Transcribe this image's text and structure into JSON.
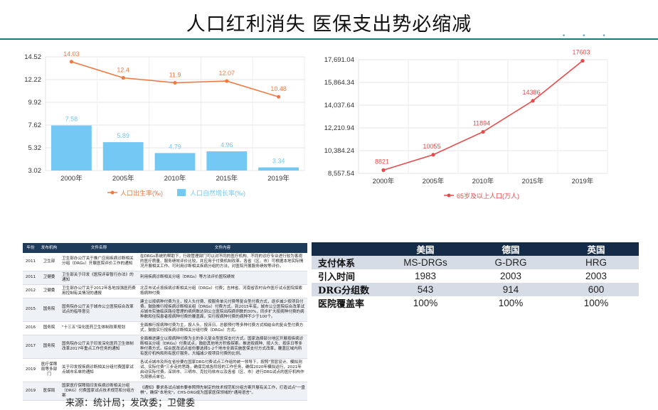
{
  "title": "人口红利消失   医保支出势必缩减",
  "chart_data": [
    {
      "type": "bar",
      "categories": [
        "2000年",
        "2005年",
        "2010年",
        "2015年",
        "2019年"
      ],
      "series": [
        {
          "name": "人口出生率(‰)",
          "type": "line",
          "values": [
            14.03,
            12.4,
            11.9,
            12.07,
            10.48
          ],
          "color": "#f07a45"
        },
        {
          "name": "人口自然增长率(‰)",
          "type": "bar",
          "values": [
            7.58,
            5.89,
            4.79,
            4.96,
            3.34
          ],
          "color": "#74c8f4"
        }
      ],
      "yticks": [
        "14.52",
        "12.22",
        "9.92",
        "7.62",
        "5.32",
        "3.02"
      ],
      "ylim": [
        3.02,
        14.52
      ],
      "grid": true,
      "legend": "bottom"
    },
    {
      "type": "line",
      "categories": [
        "2000年",
        "2005年",
        "2010年",
        "2015年",
        "2019年"
      ],
      "series": [
        {
          "name": "65岁及以上人口(万人)",
          "values": [
            8821,
            10055,
            11894,
            14386,
            17603
          ],
          "color": "#e84a4a"
        }
      ],
      "yticks": [
        "17,691.04",
        "15,864.34",
        "14,037.64",
        "12,210.94",
        "10,384.24",
        "8,557.54"
      ],
      "ylim": [
        8557.54,
        17691.04
      ],
      "grid": true,
      "legend": "bottom"
    }
  ],
  "policy_table": {
    "headers": [
      "年份",
      "发布机构",
      "文件名称",
      "文件内容"
    ],
    "rows": [
      [
        "2011",
        "卫生部",
        "卫生部办公厅关于推广应用疾病诊断相关分组（DRGs）开展医院评价工作的通知",
        "在DRGs系统的帮助下，行政管理部门可以对不同的医疗机构、不同的诊疗专业进行较为客观的医疗质量、服务绩效评价比较，并应用于付费机制改革。各省（区、市）可根据本地实际情况开展相关工作。可利用诊断相关疾病分组的方法，对医院开展服务绩效等评价。"
      ],
      [
        "2011",
        "卫健委",
        "卫生部关于印发《医院评审暂行办法》的通知",
        "利用疾病诊断相关分组（DRGs）等方法评价医院绩效"
      ],
      [
        "2012",
        "卫健委",
        "卫生部办公厅关于2012年各地加强医药费用控制有关情况的通报",
        "北京市试点按疾病诊断相关分组（DRGs）付费；吉林省、河南省农村合作医疗试点医院探索按病种付费"
      ],
      [
        "2015",
        "国务院",
        "国务院办公厅关于城市公立医院综合改革试点的指导意见",
        "建立以按病种付费为主，按人头付费、按服务单元付费等复合型付费方式，逐步减少按项目付费。鼓励推行按疾病诊断相关组（DRGs）付费方式。到2015年底，城市公立医院综合改革试点城市实施临床路径管理的病例数达到公立医院出院病例数的30%，同步扩大按病种付费的病种数和住院患者按病种付费的覆盖面，实行按病种付费的病种不少于100个。"
      ],
      [
        "2016",
        "国务院",
        "\"十三五\"深化医药卫生体制改革规划",
        "全面推行按病种付费为主，按人头、按床日、总额预付等多种付费方式相结合的复合型付费方式，鼓励实行按疾病诊断相关分组付费（DRGs）方式。"
      ],
      [
        "2017",
        "国务院",
        "国务院办公厅关于印发深化医药卫生体制改革2017年重点工作任务的通知",
        "全面推进建立以按病种付费为主的多元复合型医保支付方式。国家选择部分地区开展按疾病诊断相关分组（DRGs）付费试点，鼓励其他地方积极探索。推进按病种、按人头、按床日等多种付费方式。综合医改试点省份要选择1-2个地市全面实施医保支付方式改革，覆盖区域内所有医疗机构和所有医疗服务，大幅减少按项目付费的比例。"
      ],
      [
        "2019",
        "医疗保障局等多部门",
        "关于印发按疾病诊断相关分组付费国家试点城市名单的通知",
        "各试点城市及所在省份要在国家DRG付费试点工作组的统一领导下，按照\"顶层设计、模拟测试、实际付费\"三步走的思路，确保完成各阶段的工作任务，确保2020年模拟运行，2021年启动实际付费。深圳市、三明市、克拉玛依市以及各省（区、市）进行DRG试点的医疗机构作为观察点单位。"
      ],
      [
        "2019",
        "医保局",
        "国家医疗保障局印发疾病诊断相关分组（DRG）付费国家试点技术规范和分组方案",
        "《通知》要求各试点城市要参照预先制定的技术规范和分组方案开展有关工作，打造试点\"一盘棋\"，确保\"本地化\"。CHS-DRG成为国家医保领域的\"通用语言\"。"
      ]
    ]
  },
  "drg_table": {
    "headers": [
      "",
      "美国",
      "德国",
      "英国"
    ],
    "rows": [
      [
        "支付体系",
        "MS-DRGs",
        "G-DRG",
        "HRG"
      ],
      [
        "引入时间",
        "1983",
        "2003",
        "2003"
      ],
      [
        "DRG分组数",
        "543",
        "914",
        "600"
      ],
      [
        "医院覆盖率",
        "100%",
        "100%",
        "100%"
      ]
    ]
  },
  "source": "来源：统计局；发改委；卫健委"
}
